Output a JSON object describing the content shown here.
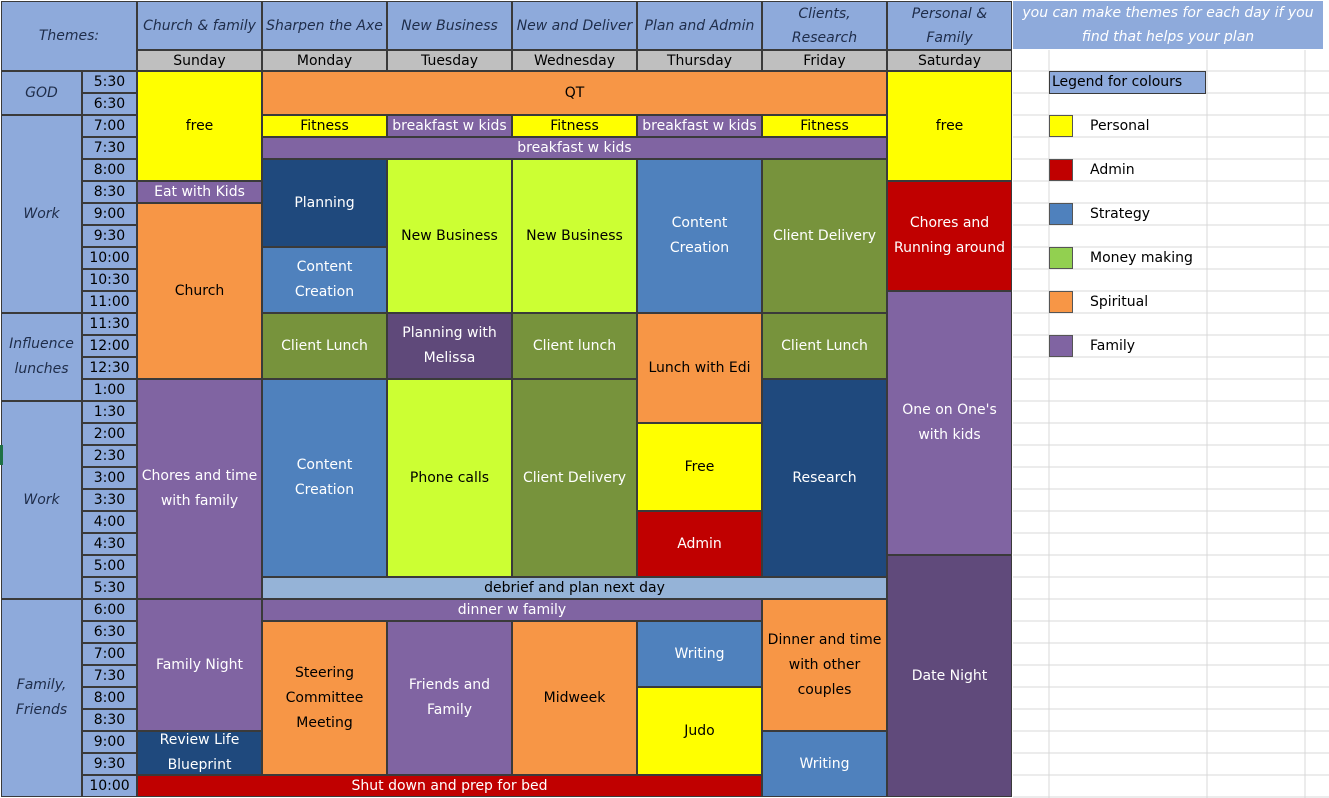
{
  "themes_label": "Themes:",
  "theme_note": "you can make themes for each day if you find that helps your plan",
  "days": [
    {
      "theme": "Church & family",
      "name": "Sunday"
    },
    {
      "theme": "Sharpen the Axe",
      "name": "Monday"
    },
    {
      "theme": "New Business",
      "name": "Tuesday"
    },
    {
      "theme": "New and Deliver",
      "name": "Wednesday"
    },
    {
      "theme": "Plan and Admin",
      "name": "Thursday"
    },
    {
      "theme": "Clients, Research",
      "name": "Friday"
    },
    {
      "theme": "Personal & Family",
      "name": "Saturday"
    }
  ],
  "times": [
    "5:30",
    "6:30",
    "7:00",
    "7:30",
    "8:00",
    "8:30",
    "9:00",
    "9:30",
    "10:00",
    "10:30",
    "11:00",
    "11:30",
    "12:00",
    "12:30",
    "1:00",
    "1:30",
    "2:00",
    "2:30",
    "3:00",
    "3:30",
    "4:00",
    "4:30",
    "5:00",
    "5:30",
    "6:00",
    "6:30",
    "7:00",
    "7:30",
    "8:00",
    "8:30",
    "9:00",
    "9:30",
    "10:00"
  ],
  "groups": [
    {
      "label": "GOD",
      "start": 0,
      "span": 2
    },
    {
      "label": "Work",
      "start": 2,
      "span": 9
    },
    {
      "label": "Influence lunches",
      "start": 11,
      "span": 4
    },
    {
      "label": "Work",
      "start": 15,
      "span": 9
    },
    {
      "label": "Family, Friends",
      "start": 24,
      "span": 9
    }
  ],
  "colors": {
    "personal": "#ffff00",
    "admin": "#c00000",
    "strategy": "#4f81bd",
    "money": "#92d050",
    "spiritual": "#f79646",
    "family": "#8064a2",
    "dark_blue": "#1f497d",
    "olive": "#77933c",
    "lime": "#ccff33",
    "light_blue": "#95b3d7",
    "dark_purple": "#604a7b",
    "mid_purple": "#5f497a",
    "header": "#8eaadb",
    "day_header": "#bfbfbf"
  },
  "events": [
    {
      "label": "free",
      "col": 0,
      "ce": 1,
      "rs": 0,
      "re": 5,
      "color": "personal"
    },
    {
      "label": "Eat with Kids",
      "col": 0,
      "ce": 1,
      "rs": 5,
      "re": 6,
      "color": "family"
    },
    {
      "label": "Church",
      "col": 0,
      "ce": 1,
      "rs": 6,
      "re": 14,
      "color": "spiritual"
    },
    {
      "label": "Chores and time with family",
      "col": 0,
      "ce": 1,
      "rs": 14,
      "re": 24,
      "color": "family"
    },
    {
      "label": "Family Night",
      "col": 0,
      "ce": 1,
      "rs": 24,
      "re": 30,
      "color": "family"
    },
    {
      "label": "Review Life Blueprint",
      "col": 0,
      "ce": 1,
      "rs": 30,
      "re": 32,
      "color": "dark_blue"
    },
    {
      "label": "QT",
      "col": 1,
      "ce": 6,
      "rs": 0,
      "re": 2,
      "color": "spiritual"
    },
    {
      "label": "Fitness",
      "col": 1,
      "ce": 2,
      "rs": 2,
      "re": 3,
      "color": "personal"
    },
    {
      "label": "breakfast w kids",
      "col": 2,
      "ce": 3,
      "rs": 2,
      "re": 3,
      "color": "family"
    },
    {
      "label": "Fitness",
      "col": 3,
      "ce": 4,
      "rs": 2,
      "re": 3,
      "color": "personal"
    },
    {
      "label": "breakfast w kids",
      "col": 4,
      "ce": 5,
      "rs": 2,
      "re": 3,
      "color": "family"
    },
    {
      "label": "Fitness",
      "col": 5,
      "ce": 6,
      "rs": 2,
      "re": 3,
      "color": "personal"
    },
    {
      "label": "breakfast w kids",
      "col": 1,
      "ce": 6,
      "rs": 3,
      "re": 4,
      "color": "family"
    },
    {
      "label": "Planning",
      "col": 1,
      "ce": 2,
      "rs": 4,
      "re": 8,
      "color": "dark_blue"
    },
    {
      "label": "Content Creation",
      "col": 1,
      "ce": 2,
      "rs": 8,
      "re": 11,
      "color": "strategy"
    },
    {
      "label": "Client Lunch",
      "col": 1,
      "ce": 2,
      "rs": 11,
      "re": 14,
      "color": "olive"
    },
    {
      "label": "Content Creation",
      "col": 1,
      "ce": 2,
      "rs": 14,
      "re": 23,
      "color": "strategy"
    },
    {
      "label": "New Business",
      "col": 2,
      "ce": 3,
      "rs": 4,
      "re": 11,
      "color": "lime"
    },
    {
      "label": "Planning with Melissa",
      "col": 2,
      "ce": 3,
      "rs": 11,
      "re": 14,
      "color": "mid_purple"
    },
    {
      "label": "Phone calls",
      "col": 2,
      "ce": 3,
      "rs": 14,
      "re": 23,
      "color": "lime"
    },
    {
      "label": "New Business",
      "col": 3,
      "ce": 4,
      "rs": 4,
      "re": 11,
      "color": "lime"
    },
    {
      "label": "Client lunch",
      "col": 3,
      "ce": 4,
      "rs": 11,
      "re": 14,
      "color": "olive"
    },
    {
      "label": "Client Delivery",
      "col": 3,
      "ce": 4,
      "rs": 14,
      "re": 23,
      "color": "olive"
    },
    {
      "label": "Content Creation",
      "col": 4,
      "ce": 5,
      "rs": 4,
      "re": 11,
      "color": "strategy"
    },
    {
      "label": "Lunch with Edi",
      "col": 4,
      "ce": 5,
      "rs": 11,
      "re": 16,
      "color": "spiritual"
    },
    {
      "label": "Free",
      "col": 4,
      "ce": 5,
      "rs": 16,
      "re": 20,
      "color": "personal"
    },
    {
      "label": "Admin",
      "col": 4,
      "ce": 5,
      "rs": 20,
      "re": 23,
      "color": "admin"
    },
    {
      "label": "Client Delivery",
      "col": 5,
      "ce": 6,
      "rs": 4,
      "re": 11,
      "color": "olive"
    },
    {
      "label": "Client Lunch",
      "col": 5,
      "ce": 6,
      "rs": 11,
      "re": 14,
      "color": "olive"
    },
    {
      "label": "Research",
      "col": 5,
      "ce": 6,
      "rs": 14,
      "re": 23,
      "color": "dark_blue"
    },
    {
      "label": "debrief and plan next day",
      "col": 1,
      "ce": 6,
      "rs": 23,
      "re": 24,
      "color": "light_blue"
    },
    {
      "label": "dinner w family",
      "col": 1,
      "ce": 5,
      "rs": 24,
      "re": 25,
      "color": "family"
    },
    {
      "label": "Steering Committee Meeting",
      "col": 1,
      "ce": 2,
      "rs": 25,
      "re": 32,
      "color": "spiritual"
    },
    {
      "label": "Friends and Family",
      "col": 2,
      "ce": 3,
      "rs": 25,
      "re": 32,
      "color": "family"
    },
    {
      "label": "Midweek",
      "col": 3,
      "ce": 4,
      "rs": 25,
      "re": 32,
      "color": "spiritual"
    },
    {
      "label": "Writing",
      "col": 4,
      "ce": 5,
      "rs": 25,
      "re": 28,
      "color": "strategy"
    },
    {
      "label": "Judo",
      "col": 4,
      "ce": 5,
      "rs": 28,
      "re": 32,
      "color": "personal"
    },
    {
      "label": "Dinner and time with other couples",
      "col": 5,
      "ce": 6,
      "rs": 24,
      "re": 30,
      "color": "spiritual"
    },
    {
      "label": "Writing",
      "col": 5,
      "ce": 6,
      "rs": 30,
      "re": 33,
      "color": "strategy"
    },
    {
      "label": "free",
      "col": 6,
      "ce": 7,
      "rs": 0,
      "re": 5,
      "color": "personal"
    },
    {
      "label": "Chores and Running around",
      "col": 6,
      "ce": 7,
      "rs": 5,
      "re": 10,
      "color": "admin"
    },
    {
      "label": "One on One's with kids",
      "col": 6,
      "ce": 7,
      "rs": 10,
      "re": 22,
      "color": "family"
    },
    {
      "label": "Date Night",
      "col": 6,
      "ce": 7,
      "rs": 22,
      "re": 33,
      "color": "dark_purple"
    },
    {
      "label": "Shut down and prep for bed",
      "col": 0,
      "ce": 5,
      "rs": 32,
      "re": 33,
      "color": "admin"
    }
  ],
  "legend": {
    "title": "Legend for colours",
    "items": [
      {
        "label": "Personal",
        "color": "personal"
      },
      {
        "label": "Admin",
        "color": "admin"
      },
      {
        "label": "Strategy",
        "color": "strategy"
      },
      {
        "label": "Money making",
        "color": "money"
      },
      {
        "label": "Spiritual",
        "color": "spiritual"
      },
      {
        "label": "Family",
        "color": "family"
      }
    ]
  }
}
